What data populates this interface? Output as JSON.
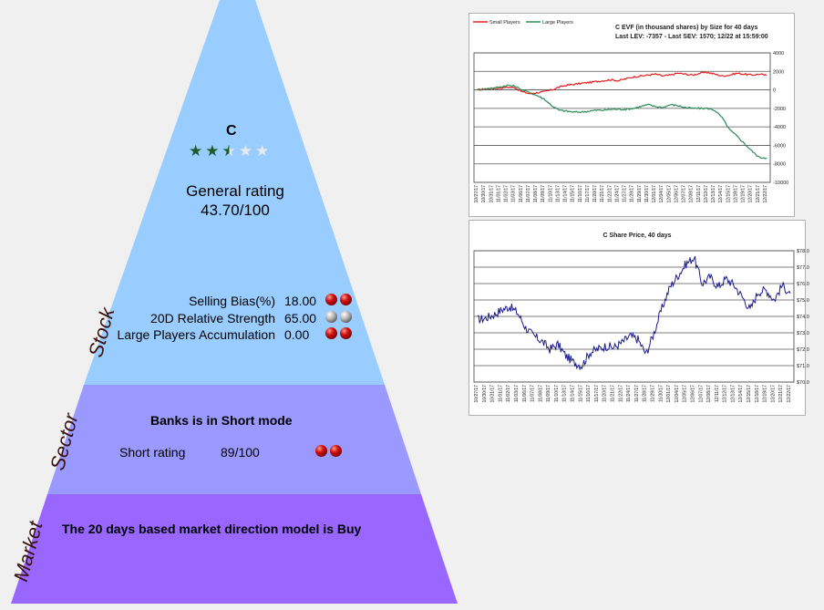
{
  "stock": {
    "symbol": "C",
    "stars": {
      "rating": 2.5,
      "max": 5
    },
    "general_rating_label": "General rating",
    "general_rating_value": "43.70/100",
    "metrics": [
      {
        "label": "Selling Bias(%)",
        "value": "18.00",
        "balls": [
          "red",
          "red"
        ]
      },
      {
        "label": "20D Relative Strength",
        "value": "65.00",
        "balls": [
          "gray",
          "gray"
        ]
      },
      {
        "label": "Large Players Accumulation",
        "value": "0.00",
        "balls": [
          "red",
          "red"
        ]
      }
    ],
    "side_label": "Stock"
  },
  "sector": {
    "title": "Banks is in Short mode",
    "short_rating_label": "Short rating",
    "short_rating_value": "89/100",
    "balls": [
      "red",
      "red"
    ],
    "side_label": "Sector"
  },
  "market": {
    "title": "The 20 days based market direction model is Buy",
    "side_label": "Market"
  },
  "colors": {
    "stock_layer": "#99ccff",
    "sector_layer": "#9999ff",
    "market_layer": "#9966ff",
    "small_players": "#e02020",
    "large_players": "#2e8b57",
    "price_line": "#1a1a8c"
  },
  "chart_data": [
    {
      "type": "line",
      "title_line1": "C EVF (in thousand shares) by Size for 40 days",
      "title_line2": "Last LEV: -7357 - Last SEV: 1570; 12/22 at 15:59:00",
      "ylim": [
        -10000,
        4000
      ],
      "yticks": [
        "4000",
        "2000",
        "0",
        "-2000",
        "-4000",
        "-6000",
        "-8000",
        "-10000"
      ],
      "ytick_values": [
        4000,
        2000,
        0,
        -2000,
        -4000,
        -6000,
        -8000,
        -10000
      ],
      "x": [
        "10/27/17",
        "10/30/17",
        "10/31/17",
        "11/01/17",
        "11/02/17",
        "11/03/17",
        "11/06/17",
        "11/07/17",
        "11/08/17",
        "11/09/17",
        "11/10/17",
        "11/13/17",
        "11/14/17",
        "11/15/17",
        "11/16/17",
        "11/17/17",
        "11/20/17",
        "11/21/17",
        "11/22/17",
        "11/24/17",
        "11/27/17",
        "11/28/17",
        "11/29/17",
        "11/30/17",
        "12/01/17",
        "12/04/17",
        "12/05/17",
        "12/06/17",
        "12/07/17",
        "12/08/17",
        "12/11/17",
        "12/12/17",
        "12/13/17",
        "12/14/17",
        "12/15/17",
        "12/18/17",
        "12/19/17",
        "12/20/17",
        "12/21/17",
        "12/22/17"
      ],
      "series": [
        {
          "name": "Small Players",
          "values": [
            0,
            100,
            150,
            200,
            300,
            250,
            -200,
            -400,
            -300,
            -200,
            0,
            300,
            500,
            600,
            700,
            800,
            900,
            1000,
            1100,
            1000,
            1200,
            1400,
            1500,
            1600,
            1700,
            1500,
            1600,
            1800,
            1700,
            1600,
            1800,
            1900,
            1700,
            1500,
            1600,
            1800,
            1700,
            1600,
            1700,
            1570
          ]
        },
        {
          "name": "Large Players",
          "values": [
            0,
            100,
            200,
            300,
            500,
            400,
            0,
            -300,
            -600,
            -1000,
            -1700,
            -2200,
            -2300,
            -2400,
            -2400,
            -2300,
            -2200,
            -2200,
            -2100,
            -2100,
            -2100,
            -2000,
            -1800,
            -1600,
            -1800,
            -1900,
            -1600,
            -1700,
            -1900,
            -2000,
            -2000,
            -2000,
            -2200,
            -3000,
            -4300,
            -5000,
            -5800,
            -6600,
            -7300,
            -7357
          ]
        }
      ]
    },
    {
      "type": "line",
      "title": "C Share Price, 40 days",
      "ylim": [
        70,
        78
      ],
      "yticks": [
        "$78.0",
        "$77.0",
        "$76.0",
        "$75.0",
        "$74.0",
        "$73.0",
        "$72.0",
        "$71.0",
        "$70.0"
      ],
      "ytick_values": [
        78,
        77,
        76,
        75,
        74,
        73,
        72,
        71,
        70
      ],
      "x": [
        "10/27/17",
        "10/30/17",
        "10/31/17",
        "11/01/17",
        "11/02/17",
        "11/03/17",
        "11/06/17",
        "11/07/17",
        "11/08/17",
        "11/09/17",
        "11/10/17",
        "11/13/17",
        "11/14/17",
        "11/15/17",
        "11/16/17",
        "11/17/17",
        "11/20/17",
        "11/21/17",
        "11/22/17",
        "11/24/17",
        "11/27/17",
        "11/28/17",
        "11/29/17",
        "11/30/17",
        "12/01/17",
        "12/04/17",
        "12/05/17",
        "12/06/17",
        "12/07/17",
        "12/08/17",
        "12/11/17",
        "12/12/17",
        "12/13/17",
        "12/14/17",
        "12/15/17",
        "12/18/17",
        "12/19/17",
        "12/20/17",
        "12/21/17",
        "12/22/17"
      ],
      "series": [
        {
          "name": "",
          "values": [
            73.8,
            73.9,
            74.1,
            74.4,
            74.6,
            74.2,
            73.3,
            72.8,
            72.5,
            72.0,
            72.3,
            71.6,
            71.2,
            71.0,
            71.8,
            72.0,
            72.2,
            72.1,
            72.4,
            72.8,
            72.6,
            71.7,
            73.0,
            74.5,
            75.8,
            76.5,
            77.2,
            77.6,
            76.0,
            76.4,
            75.8,
            76.3,
            75.9,
            75.2,
            74.4,
            75.5,
            75.6,
            75.0,
            75.9,
            75.4
          ]
        }
      ]
    }
  ]
}
